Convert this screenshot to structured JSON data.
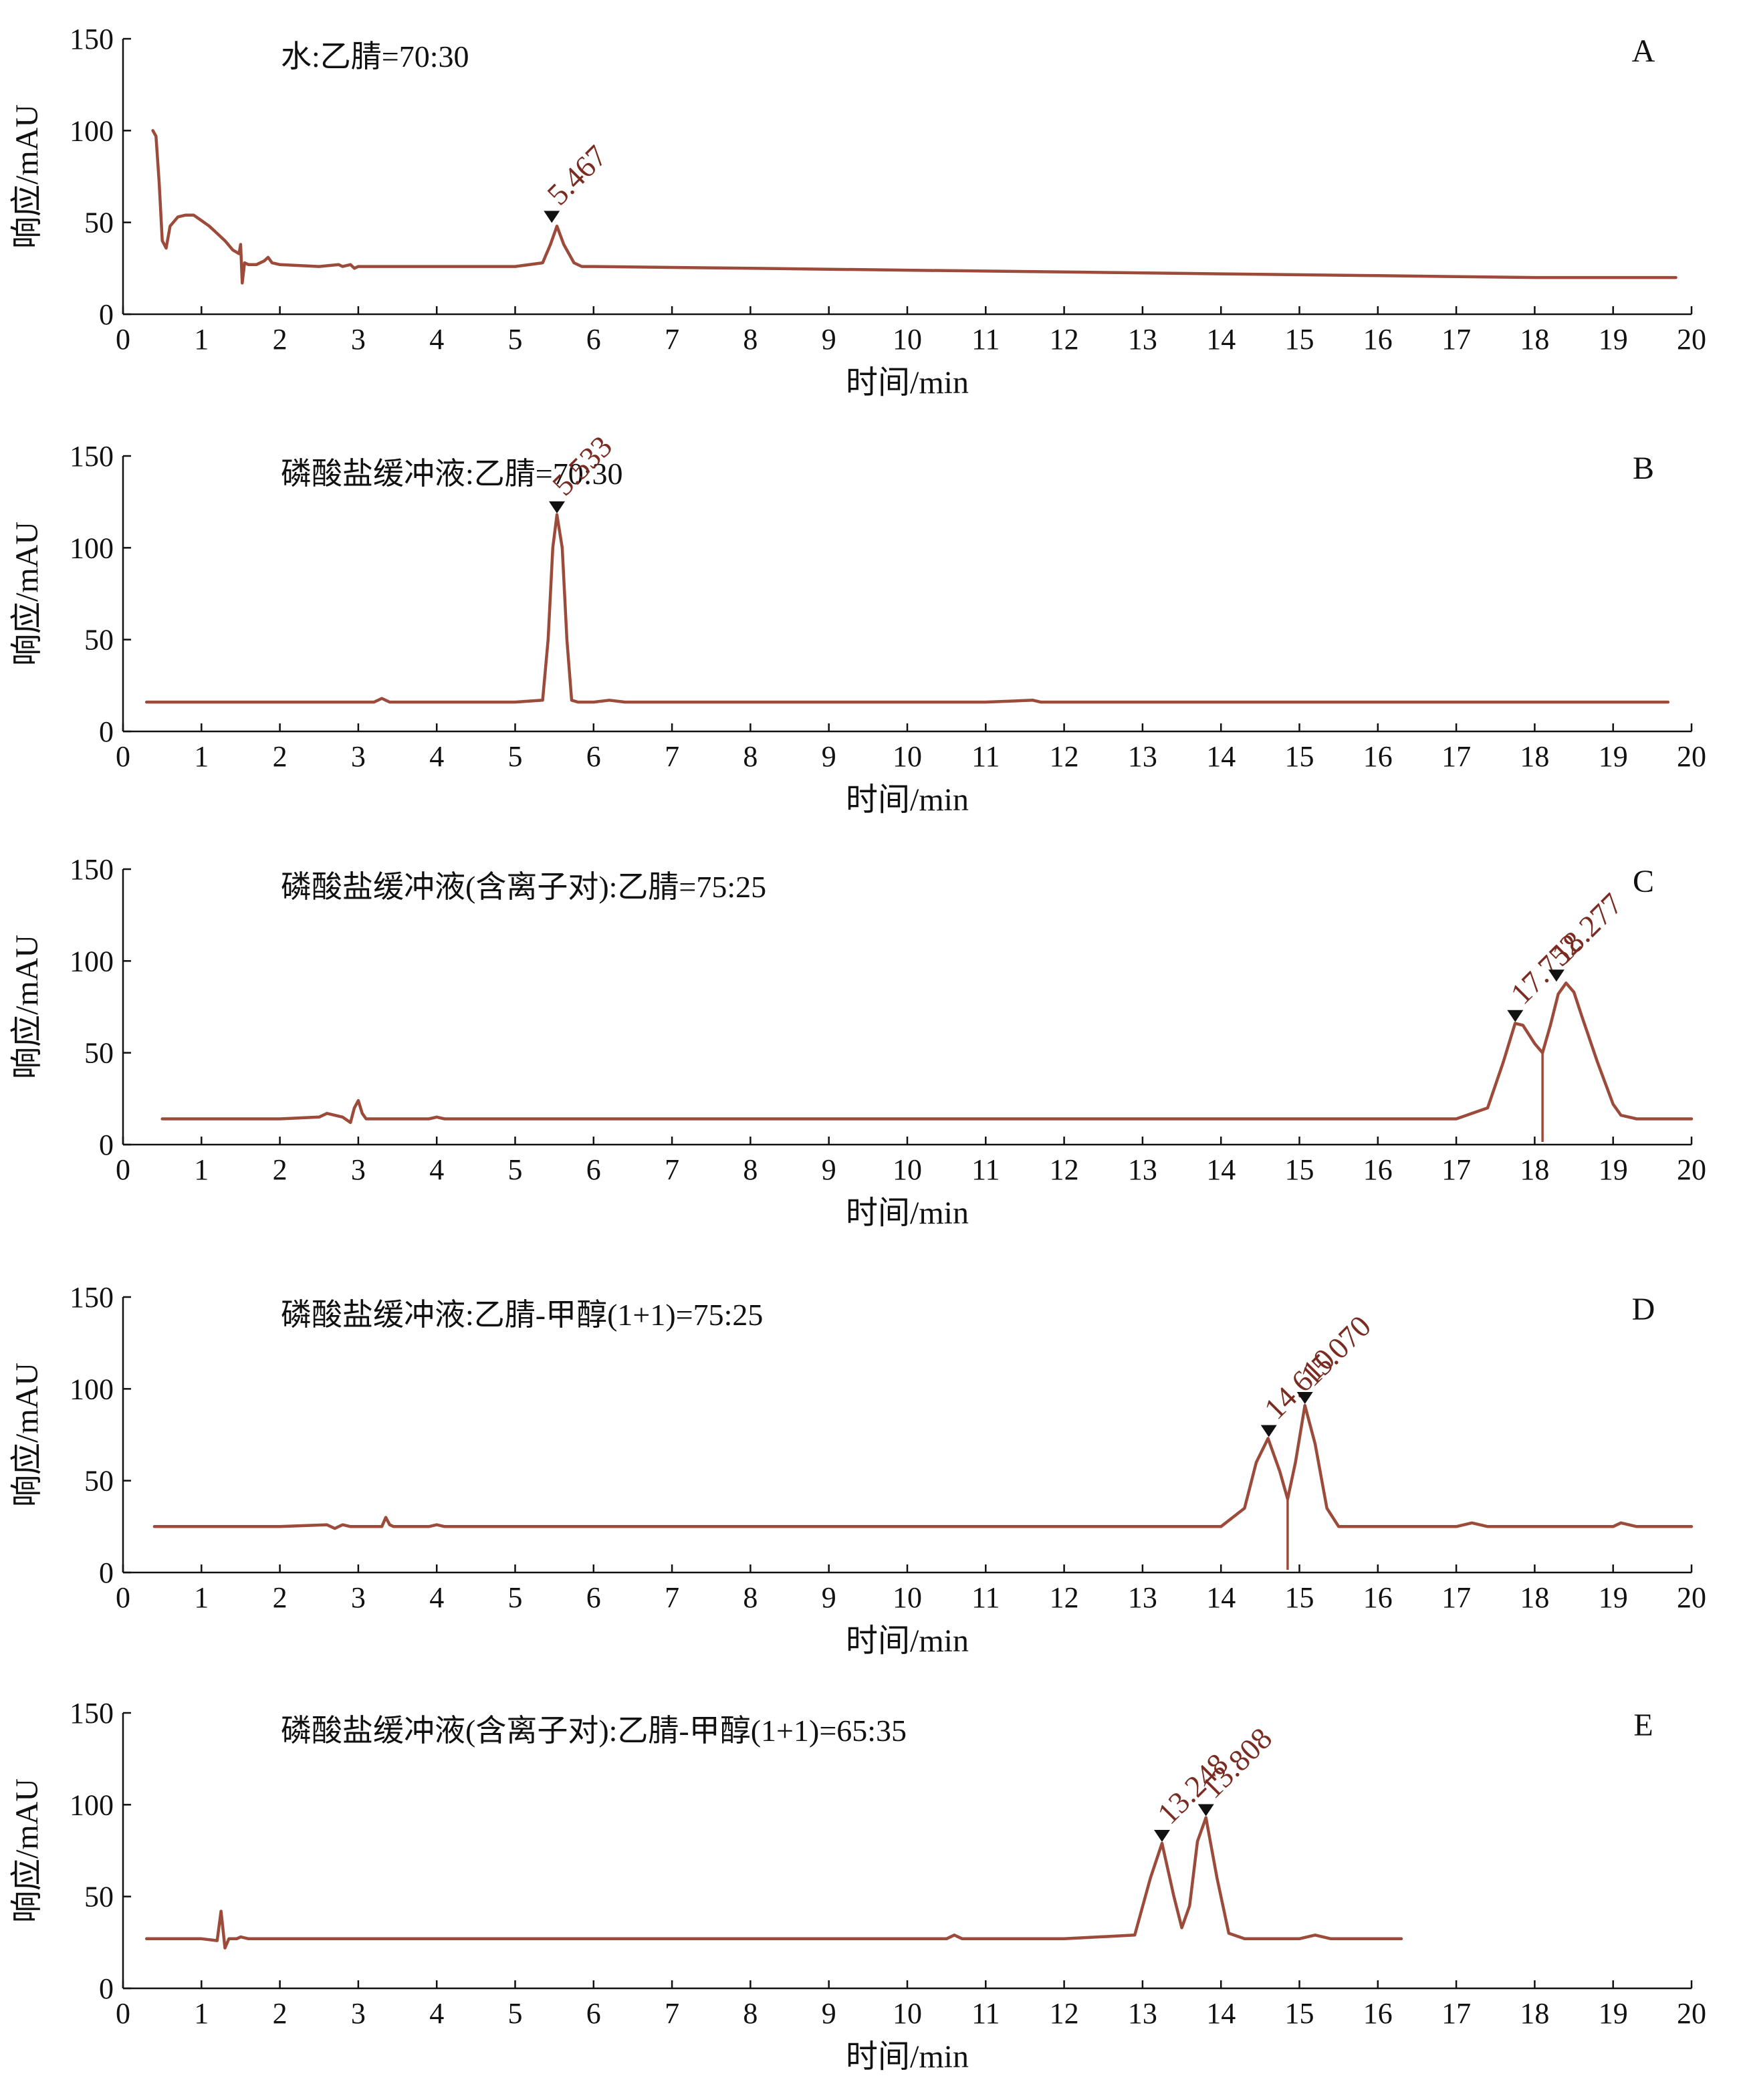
{
  "figure": {
    "colors": {
      "trace": "#9c4a3a",
      "peak_label": "#7a2c22",
      "marker": "#111111",
      "axis": "#111111"
    }
  },
  "chart_data": [
    {
      "type": "line",
      "letter": "A",
      "title": "水:乙腈=70:30",
      "xlabel": "时间/min",
      "ylabel": "响应/mAU",
      "xlim": [
        0,
        20
      ],
      "ylim": [
        0,
        150
      ],
      "x_ticks": [
        "0",
        "1",
        "2",
        "3",
        "4",
        "5",
        "6",
        "7",
        "8",
        "9",
        "10",
        "11",
        "12",
        "13",
        "14",
        "15",
        "16",
        "17",
        "18",
        "19",
        "20"
      ],
      "y_ticks": [
        "0",
        "50",
        "100",
        "150"
      ],
      "series": [
        {
          "x": [
            0.38,
            0.42,
            0.46,
            0.5,
            0.55,
            0.6,
            0.7,
            0.8,
            0.9,
            1.0,
            1.1,
            1.2,
            1.3,
            1.4,
            1.48,
            1.5,
            1.52,
            1.55,
            1.6,
            1.7,
            1.8,
            1.85,
            1.9,
            2.0,
            2.5,
            2.75,
            2.8,
            2.9,
            2.95,
            3.0,
            4.0,
            5.0,
            5.35,
            5.45,
            5.533,
            5.62,
            5.75,
            5.85,
            6.0,
            8.0,
            10.0,
            12.0,
            14.0,
            16.0,
            18.0,
            19.8
          ],
          "y": [
            100,
            97,
            72,
            40,
            36,
            48,
            53,
            54,
            54,
            51,
            48,
            44,
            40,
            35,
            33,
            38,
            17,
            28,
            27,
            27,
            29,
            31,
            28,
            27,
            26,
            27,
            26,
            27,
            25,
            26,
            26,
            26,
            28,
            38,
            48,
            38,
            28,
            26,
            26,
            25,
            24,
            23,
            22,
            21,
            20,
            20
          ]
        }
      ],
      "peaks": [
        {
          "time": 5.467,
          "label": "5.467",
          "marker_y": 49
        }
      ]
    },
    {
      "type": "line",
      "letter": "B",
      "title": "磷酸盐缓冲液:乙腈=70:30",
      "xlabel": "时间/min",
      "ylabel": "响应/mAU",
      "xlim": [
        0,
        20
      ],
      "ylim": [
        0,
        150
      ],
      "x_ticks": [
        "0",
        "1",
        "2",
        "3",
        "4",
        "5",
        "6",
        "7",
        "8",
        "9",
        "10",
        "11",
        "12",
        "13",
        "14",
        "15",
        "16",
        "17",
        "18",
        "19",
        "20"
      ],
      "y_ticks": [
        "0",
        "50",
        "100",
        "150"
      ],
      "series": [
        {
          "x": [
            0.3,
            1.0,
            2.0,
            3.0,
            3.2,
            3.3,
            3.4,
            4.0,
            5.0,
            5.35,
            5.42,
            5.48,
            5.533,
            5.6,
            5.66,
            5.72,
            5.8,
            6.0,
            6.2,
            6.4,
            7.0,
            9.0,
            11.0,
            11.6,
            11.7,
            11.8,
            13.0,
            15.0,
            17.0,
            19.7
          ],
          "y": [
            16,
            16,
            16,
            16,
            16,
            18,
            16,
            16,
            16,
            17,
            50,
            100,
            118,
            100,
            50,
            17,
            16,
            16,
            17,
            16,
            16,
            16,
            16,
            17,
            16,
            16,
            16,
            16,
            16,
            16
          ]
        }
      ],
      "peaks": [
        {
          "time": 5.533,
          "label": "5.533",
          "marker_y": 118
        }
      ]
    },
    {
      "type": "line",
      "letter": "C",
      "title": "磷酸盐缓冲液(含离子对):乙腈=75:25",
      "xlabel": "时间/min",
      "ylabel": "响应/mAU",
      "xlim": [
        0,
        20
      ],
      "ylim": [
        0,
        150
      ],
      "x_ticks": [
        "0",
        "1",
        "2",
        "3",
        "4",
        "5",
        "6",
        "7",
        "8",
        "9",
        "10",
        "11",
        "12",
        "13",
        "14",
        "15",
        "16",
        "17",
        "18",
        "19",
        "20"
      ],
      "y_ticks": [
        "0",
        "50",
        "100",
        "150"
      ],
      "series": [
        {
          "x": [
            0.5,
            1.0,
            2.0,
            2.5,
            2.6,
            2.7,
            2.8,
            2.9,
            2.95,
            3.0,
            3.05,
            3.1,
            3.3,
            3.9,
            4.0,
            4.1,
            5.0,
            8.0,
            11.0,
            14.0,
            17.0,
            17.4,
            17.6,
            17.75,
            17.85,
            18.0,
            18.1,
            18.2,
            18.3,
            18.4,
            18.5,
            18.6,
            18.8,
            19.0,
            19.1,
            19.3,
            20.0
          ],
          "y": [
            14,
            14,
            14,
            15,
            17,
            16,
            15,
            12,
            20,
            24,
            17,
            14,
            14,
            14,
            15,
            14,
            14,
            14,
            14,
            14,
            14,
            20,
            45,
            66,
            65,
            55,
            50,
            65,
            82,
            88,
            83,
            70,
            45,
            22,
            16,
            14,
            14
          ]
        }
      ],
      "peaks": [
        {
          "time": 17.752,
          "label": "17.752",
          "marker_y": 66
        },
        {
          "time": 18.277,
          "label": "18.277",
          "marker_y": 88
        }
      ],
      "dividers": [
        {
          "time": 18.1,
          "y": 50
        }
      ]
    },
    {
      "type": "line",
      "letter": "D",
      "title": "磷酸盐缓冲液:乙腈-甲醇(1+1)=75:25",
      "xlabel": "时间/min",
      "ylabel": "响应/mAU",
      "xlim": [
        0,
        20
      ],
      "ylim": [
        0,
        150
      ],
      "x_ticks": [
        "0",
        "1",
        "2",
        "3",
        "4",
        "5",
        "6",
        "7",
        "8",
        "9",
        "10",
        "11",
        "12",
        "13",
        "14",
        "15",
        "16",
        "17",
        "18",
        "19",
        "20"
      ],
      "y_ticks": [
        "0",
        "50",
        "100",
        "150"
      ],
      "series": [
        {
          "x": [
            0.4,
            1.0,
            2.0,
            2.6,
            2.7,
            2.8,
            2.9,
            3.0,
            3.3,
            3.35,
            3.4,
            3.45,
            3.6,
            3.9,
            4.0,
            4.1,
            5.0,
            8.0,
            11.0,
            14.0,
            14.3,
            14.45,
            14.6,
            14.75,
            14.85,
            14.95,
            15.07,
            15.2,
            15.35,
            15.5,
            16.0,
            17.0,
            17.2,
            17.4,
            18.0,
            19.0,
            19.1,
            19.3,
            20.0
          ],
          "y": [
            25,
            25,
            25,
            26,
            24,
            26,
            25,
            25,
            25,
            30,
            26,
            25,
            25,
            25,
            26,
            25,
            25,
            25,
            25,
            25,
            35,
            60,
            73,
            55,
            40,
            60,
            91,
            70,
            35,
            25,
            25,
            25,
            27,
            25,
            25,
            25,
            27,
            25,
            25
          ]
        }
      ],
      "peaks": [
        {
          "time": 14.61,
          "label": "14.610",
          "marker_y": 73
        },
        {
          "time": 15.07,
          "label": "15.070",
          "marker_y": 91
        }
      ],
      "dividers": [
        {
          "time": 14.85,
          "y": 40
        }
      ]
    },
    {
      "type": "line",
      "letter": "E",
      "title": "磷酸盐缓冲液(含离子对):乙腈-甲醇(1+1)=65:35",
      "xlabel": "时间/min",
      "ylabel": "响应/mAU",
      "xlim": [
        0,
        20
      ],
      "ylim": [
        0,
        150
      ],
      "x_ticks": [
        "0",
        "1",
        "2",
        "3",
        "4",
        "5",
        "6",
        "7",
        "8",
        "9",
        "10",
        "11",
        "12",
        "13",
        "14",
        "15",
        "16",
        "17",
        "18",
        "19",
        "20"
      ],
      "y_ticks": [
        "0",
        "50",
        "100",
        "150"
      ],
      "series": [
        {
          "x": [
            0.3,
            1.0,
            1.2,
            1.25,
            1.3,
            1.35,
            1.45,
            1.5,
            1.6,
            2.0,
            5.0,
            8.0,
            10.5,
            10.6,
            10.7,
            10.8,
            12.0,
            12.9,
            13.1,
            13.248,
            13.4,
            13.5,
            13.6,
            13.7,
            13.808,
            13.95,
            14.1,
            14.3,
            15.0,
            15.2,
            15.4,
            16.3
          ],
          "y": [
            27,
            27,
            26,
            42,
            22,
            27,
            27,
            28,
            27,
            27,
            27,
            27,
            27,
            29,
            27,
            27,
            27,
            29,
            60,
            79,
            50,
            33,
            45,
            80,
            93,
            60,
            30,
            27,
            27,
            29,
            27,
            27
          ]
        }
      ],
      "peaks": [
        {
          "time": 13.248,
          "label": "13.248",
          "marker_y": 79
        },
        {
          "time": 13.808,
          "label": "13.808",
          "marker_y": 93
        }
      ]
    }
  ]
}
